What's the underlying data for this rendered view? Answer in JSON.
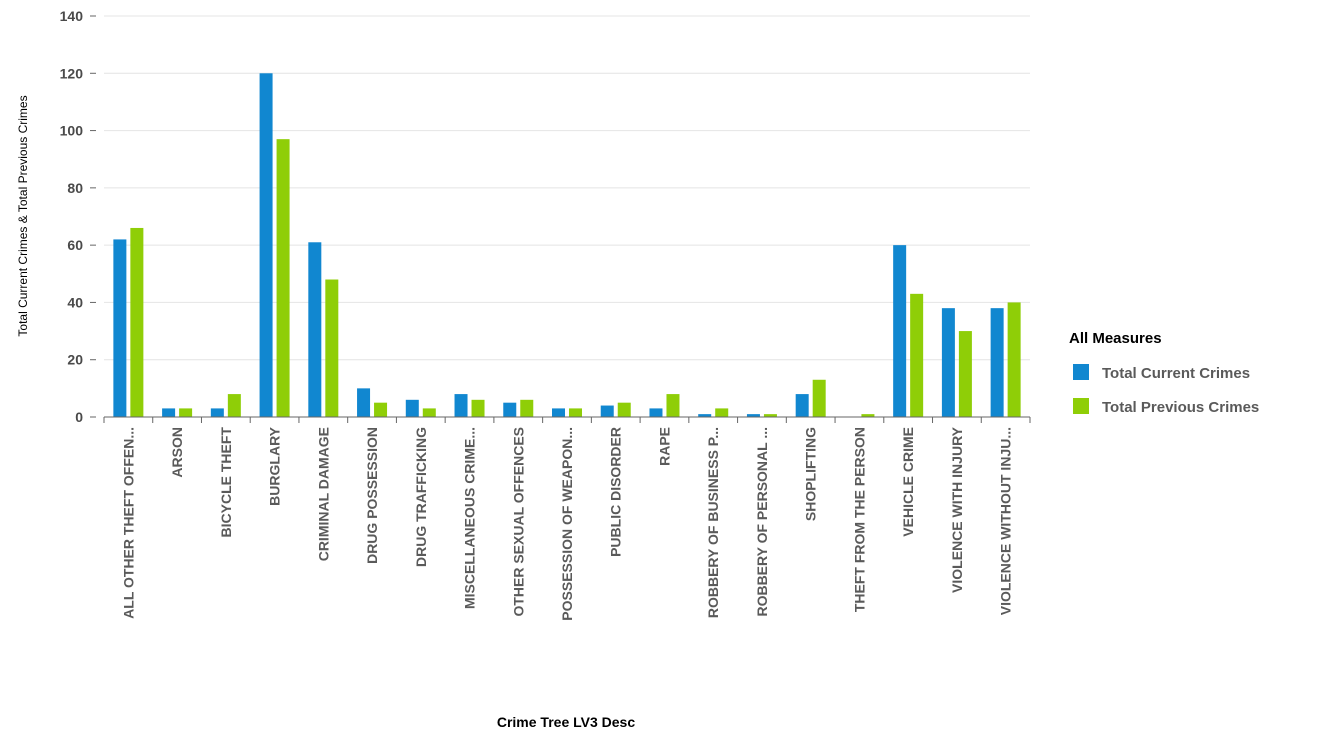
{
  "colors": {
    "current": "#1187d0",
    "previous": "#8fce07"
  },
  "chart_data": {
    "type": "bar",
    "title": "",
    "xlabel": "Crime Tree LV3 Desc",
    "ylabel": "Total Current Crimes & Total Previous Crimes",
    "ylim": [
      0,
      140
    ],
    "yticks": [
      0,
      20,
      40,
      60,
      80,
      100,
      120,
      140
    ],
    "grid": true,
    "legend_position": "right",
    "legend_title": "All Measures",
    "categories": [
      "ALL OTHER THEFT OFFEN...",
      "ARSON",
      "BICYCLE THEFT",
      "BURGLARY",
      "CRIMINAL DAMAGE",
      "DRUG POSSESSION",
      "DRUG TRAFFICKING",
      "MISCELLANEOUS CRIME...",
      "OTHER SEXUAL OFFENCES",
      "POSSESSION OF WEAPON...",
      "PUBLIC DISORDER",
      "RAPE",
      "ROBBERY OF BUSINESS P...",
      "ROBBERY OF PERSONAL ...",
      "SHOPLIFTING",
      "THEFT FROM THE PERSON",
      "VEHICLE CRIME",
      "VIOLENCE WITH INJURY",
      "VIOLENCE WITHOUT INJU..."
    ],
    "series": [
      {
        "name": "Total Current Crimes",
        "values": [
          62,
          3,
          3,
          120,
          61,
          10,
          6,
          8,
          5,
          3,
          4,
          3,
          1,
          1,
          8,
          0,
          60,
          38,
          38
        ]
      },
      {
        "name": "Total Previous Crimes",
        "values": [
          66,
          3,
          8,
          97,
          48,
          5,
          3,
          6,
          6,
          3,
          5,
          8,
          3,
          1,
          13,
          1,
          43,
          30,
          40
        ]
      }
    ]
  }
}
